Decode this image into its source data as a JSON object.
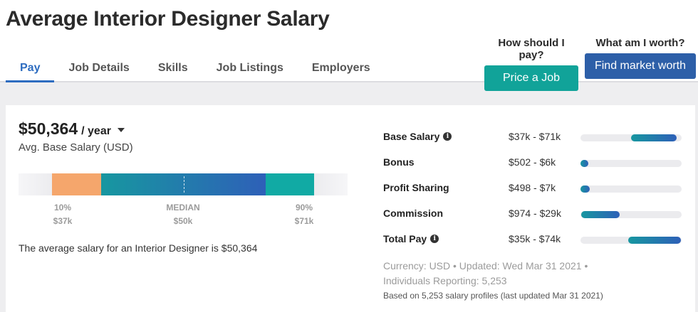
{
  "page": {
    "title": "Average Interior Designer Salary"
  },
  "tabs": [
    {
      "label": "Pay",
      "active": true
    },
    {
      "label": "Job Details",
      "active": false
    },
    {
      "label": "Skills",
      "active": false
    },
    {
      "label": "Job Listings",
      "active": false
    },
    {
      "label": "Employers",
      "active": false
    }
  ],
  "cta": {
    "price": {
      "question": "How should I pay?",
      "button": "Price a Job"
    },
    "worth": {
      "question": "What am I worth?",
      "button": "Find market worth"
    }
  },
  "salary": {
    "value": "$50,364",
    "period": "/ year",
    "subtitle": "Avg. Base Salary (USD)",
    "percentiles": [
      {
        "label": "10%",
        "value": "$37k"
      },
      {
        "label": "MEDIAN",
        "value": "$50k"
      },
      {
        "label": "90%",
        "value": "$71k"
      }
    ],
    "sentence": "The average salary for an Interior Designer is $50,364"
  },
  "breakdown": [
    {
      "label": "Base Salary",
      "info": true,
      "range": "$37k - $71k",
      "fill_start": 0.5,
      "fill_end": 0.95
    },
    {
      "label": "Bonus",
      "info": false,
      "range": "$502 - $6k",
      "fill_start": 0.0,
      "fill_end": 0.08
    },
    {
      "label": "Profit Sharing",
      "info": false,
      "range": "$498 - $7k",
      "fill_start": 0.0,
      "fill_end": 0.09
    },
    {
      "label": "Commission",
      "info": false,
      "range": "$974 - $29k",
      "fill_start": 0.01,
      "fill_end": 0.39
    },
    {
      "label": "Total Pay",
      "info": true,
      "range": "$35k - $74k",
      "fill_start": 0.47,
      "fill_end": 0.99
    }
  ],
  "meta": {
    "line1": "Currency: USD  •  Updated: Wed Mar 31 2021  •",
    "line2": "Individuals Reporting: 5,253",
    "line3": "Based on 5,253 salary profiles (last updated Mar 31 2021)"
  },
  "colors": {
    "teal": "#11a399",
    "blue": "#2d5fa8",
    "low": "#f5a66c",
    "tab_active": "#2d6cc0"
  },
  "icons": {
    "info": "info-icon",
    "dropdown": "chevron-down-icon"
  }
}
